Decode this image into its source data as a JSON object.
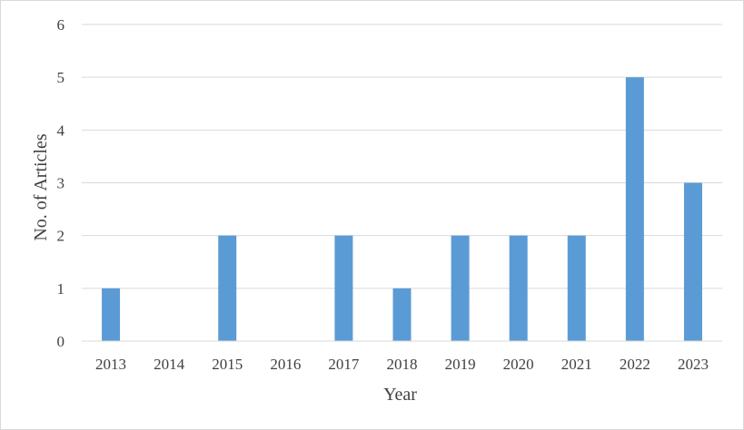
{
  "chart_data": {
    "type": "bar",
    "categories": [
      "2013",
      "2014",
      "2015",
      "2016",
      "2017",
      "2018",
      "2019",
      "2020",
      "2021",
      "2022",
      "2023"
    ],
    "values": [
      1,
      0,
      2,
      0,
      2,
      1,
      2,
      2,
      2,
      5,
      3
    ],
    "xlabel": "Year",
    "ylabel": "No. of Articles",
    "ylim": [
      0,
      6
    ],
    "yticks": [
      0,
      1,
      2,
      3,
      4,
      5,
      6
    ],
    "grid": true,
    "legend": "none",
    "colors": {
      "bar": "#5b9bd5",
      "grid": "#d9d9d9",
      "axis": "#d9d9d9",
      "text": "#404040"
    }
  }
}
